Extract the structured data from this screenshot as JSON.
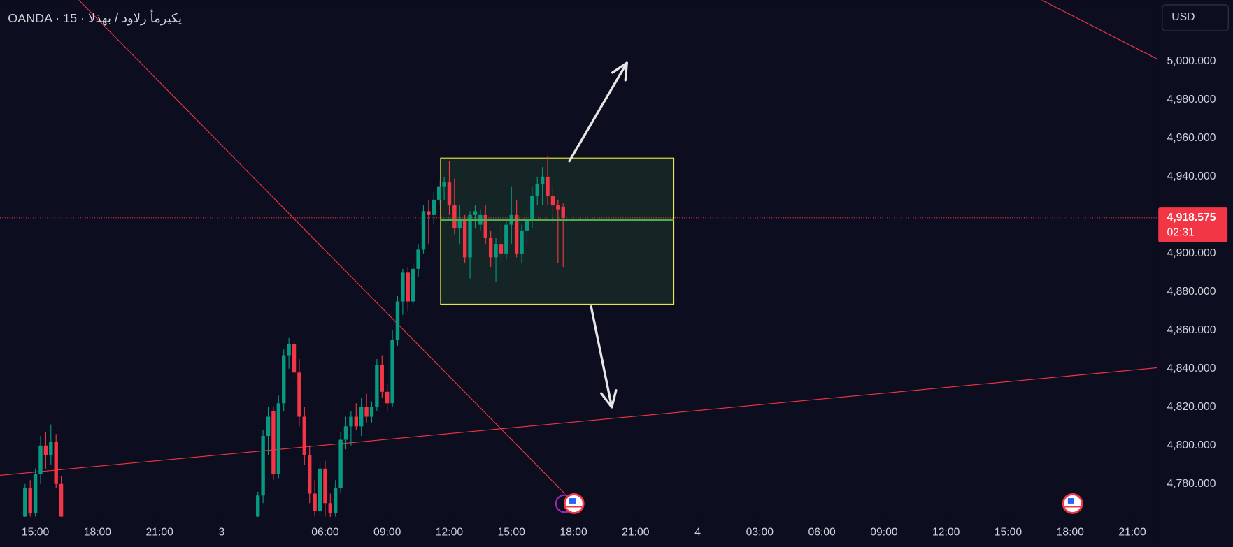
{
  "chart_data": {
    "type": "candlestick",
    "title": "OANDA · 15 · يكيرمأ رلاود / بهذلا",
    "currency": "USD",
    "up_color": "#089981",
    "down_color": "#f23645",
    "x": [
      -2,
      -1,
      0,
      1,
      2,
      3,
      4,
      5,
      43,
      44,
      45,
      46,
      47,
      48,
      49,
      50,
      51,
      52,
      53,
      54,
      55,
      56,
      57,
      58,
      59,
      60,
      61,
      62,
      63,
      64,
      65,
      66,
      67,
      68,
      69,
      70,
      71,
      72,
      73,
      74,
      75,
      76,
      77,
      78,
      79,
      80,
      81,
      82,
      83,
      84,
      85,
      86,
      87,
      88,
      89,
      90,
      91,
      92,
      93,
      94,
      95,
      96,
      97,
      98,
      99,
      100,
      101,
      102
    ],
    "open": [
      4763,
      4778,
      4765,
      4785,
      4800,
      4795,
      4802,
      4780,
      4763,
      4774,
      4805,
      4818,
      4785,
      4822,
      4847,
      4853,
      4838,
      4815,
      4795,
      4775,
      4766,
      4788,
      4770,
      4765,
      4778,
      4803,
      4810,
      4815,
      4810,
      4820,
      4815,
      4820,
      4842,
      4828,
      4822,
      4855,
      4875,
      4890,
      4875,
      4892,
      4902,
      4922,
      4920,
      4928,
      4935,
      4937,
      4925,
      4913,
      4918,
      4898,
      4920,
      4915,
      4920,
      4908,
      4898,
      4905,
      4900,
      4915,
      4920,
      4900,
      4912,
      4918,
      4930,
      4936,
      4940,
      4930,
      4925,
      4924
    ],
    "high": [
      4780,
      4782,
      4788,
      4805,
      4807,
      4811,
      4806,
      4784,
      4776,
      4808,
      4820,
      4820,
      4826,
      4850,
      4856,
      4855,
      4845,
      4820,
      4800,
      4782,
      4792,
      4792,
      4775,
      4782,
      4807,
      4815,
      4818,
      4822,
      4825,
      4827,
      4823,
      4845,
      4847,
      4832,
      4860,
      4878,
      4892,
      4893,
      4895,
      4905,
      4925,
      4928,
      4932,
      4938,
      4940,
      4948,
      4939,
      4925,
      4920,
      4922,
      4925,
      4923,
      4925,
      4912,
      4908,
      4915,
      4918,
      4935,
      4928,
      4915,
      4922,
      4935,
      4940,
      4945,
      4951,
      4935,
      4928,
      4926
    ],
    "low": [
      4762,
      4763,
      4763,
      4780,
      4788,
      4790,
      4778,
      4762,
      4762,
      4770,
      4795,
      4782,
      4783,
      4818,
      4840,
      4835,
      4810,
      4790,
      4770,
      4763,
      4763,
      4763,
      4762,
      4763,
      4775,
      4798,
      4800,
      4808,
      4805,
      4812,
      4812,
      4818,
      4825,
      4818,
      4820,
      4852,
      4868,
      4870,
      4873,
      4888,
      4900,
      4905,
      4915,
      4925,
      4928,
      4920,
      4910,
      4905,
      4895,
      4887,
      4913,
      4912,
      4905,
      4893,
      4885,
      4895,
      4897,
      4905,
      4898,
      4895,
      4905,
      4913,
      4925,
      4925,
      4925,
      4915,
      4895,
      4893
    ],
    "close": [
      4778,
      4765,
      4785,
      4800,
      4795,
      4802,
      4780,
      4763,
      4774,
      4805,
      4815,
      4785,
      4822,
      4847,
      4853,
      4838,
      4815,
      4795,
      4775,
      4766,
      4788,
      4770,
      4765,
      4778,
      4803,
      4810,
      4815,
      4810,
      4820,
      4815,
      4820,
      4842,
      4828,
      4822,
      4855,
      4875,
      4890,
      4875,
      4892,
      4902,
      4922,
      4920,
      4928,
      4935,
      4937,
      4925,
      4913,
      4918,
      4898,
      4920,
      4922,
      4920,
      4908,
      4898,
      4905,
      4900,
      4915,
      4920,
      4900,
      4912,
      4918,
      4930,
      4936,
      4940,
      4930,
      4925,
      4923,
      4918.575
    ],
    "last_price": {
      "value": 4918.575,
      "label": "4,918.575"
    },
    "countdown": "02:31",
    "xlim": [
      -6.84,
      216.87
    ],
    "ylim": [
      4762.8,
      5031.9
    ],
    "xticks": [
      {
        "value": 0,
        "label": "15:00"
      },
      {
        "value": 12,
        "label": "18:00"
      },
      {
        "value": 24,
        "label": "21:00"
      },
      {
        "value": 36,
        "label": "3"
      },
      {
        "value": 56,
        "label": "06:00"
      },
      {
        "value": 68,
        "label": "09:00"
      },
      {
        "value": 80,
        "label": "12:00"
      },
      {
        "value": 92,
        "label": "15:00"
      },
      {
        "value": 104,
        "label": "18:00"
      },
      {
        "value": 116,
        "label": "21:00"
      },
      {
        "value": 128,
        "label": "4"
      },
      {
        "value": 140,
        "label": "03:00"
      },
      {
        "value": 152,
        "label": "06:00"
      },
      {
        "value": 164,
        "label": "09:00"
      },
      {
        "value": 176,
        "label": "12:00"
      },
      {
        "value": 188,
        "label": "15:00"
      },
      {
        "value": 200,
        "label": "18:00"
      },
      {
        "value": 212,
        "label": "21:00"
      }
    ],
    "yticks": [
      {
        "value": 4780,
        "label": "4,780.000"
      },
      {
        "value": 4800,
        "label": "4,800.000"
      },
      {
        "value": 4820,
        "label": "4,820.000"
      },
      {
        "value": 4840,
        "label": "4,840.000"
      },
      {
        "value": 4860,
        "label": "4,860.000"
      },
      {
        "value": 4880,
        "label": "4,880.000"
      },
      {
        "value": 4900,
        "label": "4,900.000"
      },
      {
        "value": 4920,
        "label": "4,920.000"
      },
      {
        "value": 4940,
        "label": "4,940.000"
      },
      {
        "value": 4960,
        "label": "4,960.000"
      },
      {
        "value": 4980,
        "label": "4,980.000"
      },
      {
        "value": 5000,
        "label": "5,000.000"
      }
    ],
    "rectangle": {
      "x": [
        78.3,
        123.4
      ],
      "y": [
        4873.6,
        4949.7
      ],
      "color": "#e8e84a"
    },
    "midline": {
      "x": [
        78.3,
        123.4
      ],
      "y": [
        4917.4,
        4917.4
      ],
      "color": "#4caf50"
    },
    "trendlines": [
      {
        "x": [
          8.4,
          102.3
        ],
        "y": [
          5031.9,
          4775.0
        ],
        "color": "#f23645"
      },
      {
        "x": [
          -6.84,
          216.87
        ],
        "y": [
          4784.5,
          4840.5
        ],
        "color": "#f23645"
      },
      {
        "x": [
          194.5,
          216.87
        ],
        "y": [
          5031.9,
          5001.2
        ],
        "color": "#f23645"
      }
    ],
    "arrows": [
      {
        "x": [
          103.2,
          114.3
        ],
        "y": [
          4948.1,
          4999.2
        ],
        "color": "#e6e6e6"
      },
      {
        "x": [
          107.4,
          111.4
        ],
        "y": [
          4872.4,
          4820.0
        ],
        "color": "#e6e6e6"
      }
    ]
  }
}
